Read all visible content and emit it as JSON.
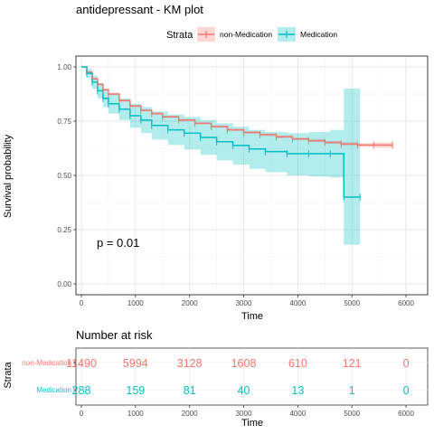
{
  "title": "antidepressant - KM plot",
  "legend": {
    "title": "Strata",
    "position": "top",
    "items": [
      "non-Medication",
      "Medication"
    ]
  },
  "colors": {
    "non_medication": "#F8766D",
    "medication": "#00BFC4"
  },
  "annotation": "p = 0.01",
  "chart_data": [
    {
      "type": "line",
      "subtype": "kaplan-meier-step",
      "xlabel": "Time",
      "ylabel": "Survival probability",
      "xlim": [
        0,
        6000
      ],
      "ylim": [
        0,
        1
      ],
      "x_ticks": [
        "0",
        "1000",
        "2000",
        "3000",
        "4000",
        "5000",
        "6000"
      ],
      "y_ticks": [
        "0.00",
        "0.25",
        "0.50",
        "0.75",
        "1.00"
      ],
      "grid": true,
      "series": [
        {
          "name": "non-Medication",
          "color": "#F8766D",
          "x": [
            0,
            100,
            200,
            300,
            400,
            500,
            700,
            900,
            1100,
            1300,
            1500,
            1800,
            2100,
            2400,
            2700,
            3000,
            3300,
            3600,
            3900,
            4200,
            4500,
            4800,
            5100,
            5400,
            5750
          ],
          "y": [
            1.0,
            0.975,
            0.945,
            0.92,
            0.895,
            0.875,
            0.845,
            0.82,
            0.8,
            0.785,
            0.77,
            0.755,
            0.74,
            0.725,
            0.71,
            0.698,
            0.688,
            0.678,
            0.668,
            0.66,
            0.652,
            0.645,
            0.64,
            0.64,
            0.64
          ],
          "ci_lower": [
            1.0,
            0.97,
            0.94,
            0.915,
            0.89,
            0.87,
            0.84,
            0.815,
            0.795,
            0.78,
            0.765,
            0.75,
            0.735,
            0.72,
            0.705,
            0.692,
            0.682,
            0.672,
            0.662,
            0.653,
            0.645,
            0.637,
            0.632,
            0.628,
            0.625
          ],
          "ci_upper": [
            1.0,
            0.98,
            0.95,
            0.925,
            0.9,
            0.88,
            0.85,
            0.825,
            0.805,
            0.79,
            0.775,
            0.76,
            0.745,
            0.73,
            0.715,
            0.704,
            0.694,
            0.684,
            0.674,
            0.667,
            0.659,
            0.653,
            0.648,
            0.652,
            0.655
          ]
        },
        {
          "name": "Medication",
          "color": "#00BFC4",
          "x": [
            0,
            100,
            200,
            300,
            400,
            500,
            700,
            900,
            1100,
            1300,
            1600,
            1900,
            2200,
            2500,
            2800,
            3100,
            3400,
            3800,
            4200,
            4600,
            4850,
            5150
          ],
          "y": [
            1.0,
            0.97,
            0.93,
            0.89,
            0.855,
            0.83,
            0.805,
            0.775,
            0.755,
            0.73,
            0.71,
            0.695,
            0.675,
            0.655,
            0.638,
            0.622,
            0.61,
            0.6,
            0.6,
            0.6,
            0.4,
            0.4
          ],
          "ci_lower": [
            1.0,
            0.95,
            0.9,
            0.855,
            0.815,
            0.785,
            0.755,
            0.72,
            0.695,
            0.665,
            0.64,
            0.62,
            0.595,
            0.57,
            0.55,
            0.53,
            0.515,
            0.5,
            0.495,
            0.49,
            0.18,
            0.18
          ],
          "ci_upper": [
            1.0,
            0.99,
            0.96,
            0.925,
            0.895,
            0.875,
            0.855,
            0.83,
            0.815,
            0.795,
            0.78,
            0.77,
            0.755,
            0.74,
            0.725,
            0.71,
            0.7,
            0.695,
            0.7,
            0.71,
            0.9,
            0.9
          ]
        }
      ]
    },
    {
      "type": "table",
      "title": "Number at risk",
      "ylabel": "Strata",
      "xlabel": "Time",
      "x_ticks": [
        "0",
        "1000",
        "2000",
        "3000",
        "4000",
        "5000",
        "6000"
      ],
      "times": [
        0,
        1000,
        2000,
        3000,
        4000,
        5000,
        6000
      ],
      "rows": [
        {
          "name": "non-Medication",
          "color": "#F8766D",
          "values": [
            "11490",
            "5994",
            "3128",
            "1608",
            "610",
            "121",
            "0"
          ]
        },
        {
          "name": "Medication",
          "color": "#00BFC4",
          "values": [
            "288",
            "159",
            "81",
            "40",
            "13",
            "1",
            "0"
          ]
        }
      ]
    }
  ]
}
